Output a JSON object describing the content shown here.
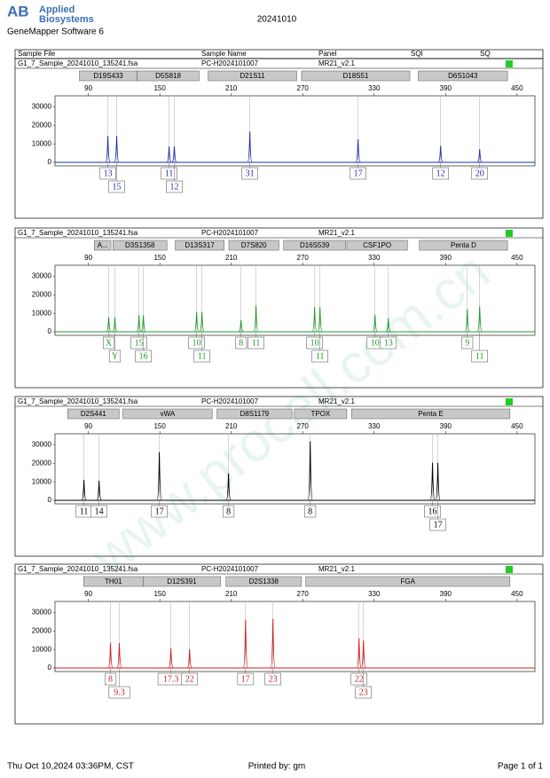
{
  "header": {
    "logo_mark": "AB",
    "logo_line1": "Applied",
    "logo_line2": "Biosystems",
    "software": "GeneMapper Software 6",
    "date": "20241010"
  },
  "columns": [
    "Sample File",
    "Sample Name",
    "Panel",
    "SQI",
    "SQ"
  ],
  "watermark": "www.procell.com.cn",
  "chart_data": [
    {
      "type": "electropherogram",
      "sample_file": "G1_7_Sample_20241010_135241.fsa",
      "sample_name": "PC-H2024101007",
      "panel": "MR21_v2.1",
      "color": "#1f2fa8",
      "xlim": [
        62,
        465
      ],
      "xticks": [
        90,
        150,
        210,
        270,
        330,
        390,
        450
      ],
      "ylim": [
        0,
        36000
      ],
      "yticks": [
        0,
        10000,
        20000,
        30000
      ],
      "markers": {
        "names": [
          "D19S433",
          "D5S818",
          "D21S11",
          "D18S51",
          "D6S1043"
        ],
        "start": [
          82.5,
          131,
          190.6,
          269,
          367
        ],
        "end": [
          131,
          183,
          265,
          360,
          442
        ]
      },
      "peaks": {
        "x": [
          106.4,
          113.8,
          157.8,
          162.2,
          225.6,
          316.5,
          385.8,
          418.6
        ],
        "values": [
          14300,
          14300,
          8600,
          8600,
          16700,
          12400,
          9000,
          7100
        ],
        "labels": [
          "13",
          "15",
          "11",
          "12",
          "31",
          "17",
          "12",
          "20"
        ]
      }
    },
    {
      "type": "electropherogram",
      "sample_file": "G1_7_Sample_20241010_135241.fsa",
      "sample_name": "PC-H2024101007",
      "panel": "MR21_v2.1",
      "color": "#1f9a2a",
      "xlim": [
        62,
        465
      ],
      "xticks": [
        90,
        150,
        210,
        270,
        330,
        390,
        450
      ],
      "ylim": [
        0,
        36000
      ],
      "yticks": [
        0,
        10000,
        20000,
        30000
      ],
      "markers": {
        "names": [
          "A...",
          "D3S1358",
          "D13S317",
          "D7S820",
          "D16S539",
          "CSF1PO",
          "Penta D"
        ],
        "start": [
          95,
          110.6,
          163,
          208,
          254,
          307,
          368
        ],
        "end": [
          109,
          156,
          204,
          250,
          306,
          358,
          442
        ]
      },
      "peaks": {
        "x": [
          107.1,
          112.3,
          132.5,
          136.2,
          180.9,
          185.4,
          218.2,
          230.8,
          280,
          284.5,
          330.7,
          341.9,
          408.2,
          418.6
        ],
        "values": [
          7900,
          7900,
          8900,
          8900,
          10800,
          10800,
          6400,
          14300,
          13300,
          13300,
          9300,
          7400,
          12300,
          13800
        ],
        "labels": [
          "X",
          "Y",
          "15",
          "16",
          "10",
          "11",
          "8",
          "11",
          "10",
          "11",
          "10",
          "13",
          "9",
          "11"
        ]
      }
    },
    {
      "type": "electropherogram",
      "sample_file": "G1_7_Sample_20241010_135241.fsa",
      "sample_name": "PC-H2024101007",
      "panel": "MR21_v2.1",
      "color": "#000000",
      "xlim": [
        62,
        465
      ],
      "xticks": [
        90,
        150,
        210,
        270,
        330,
        390,
        450
      ],
      "ylim": [
        0,
        36000
      ],
      "yticks": [
        0,
        10000,
        20000,
        30000
      ],
      "markers": {
        "names": [
          "D2S441",
          "vWA",
          "D8S1179",
          "TPOX",
          "Penta E"
        ],
        "start": [
          72.6,
          119,
          198,
          263,
          311
        ],
        "end": [
          115.9,
          194,
          261,
          307,
          444
        ]
      },
      "peaks": {
        "x": [
          86.3,
          99,
          149.6,
          207.7,
          276.3,
          379,
          383.5
        ],
        "values": [
          11100,
          10600,
          26100,
          14500,
          31900,
          20300,
          20300
        ],
        "labels": [
          "11",
          "14",
          "17",
          "8",
          "8",
          "16",
          "17"
        ]
      }
    },
    {
      "type": "electropherogram",
      "sample_file": "G1_7_Sample_20241010_135241.fsa",
      "sample_name": "PC-H2024101007",
      "panel": "MR21_v2.1",
      "color": "#cc1f1f",
      "xlim": [
        62,
        465
      ],
      "xticks": [
        90,
        150,
        210,
        270,
        330,
        390,
        450
      ],
      "ylim": [
        0,
        36000
      ],
      "yticks": [
        0,
        10000,
        20000,
        30000
      ],
      "markers": {
        "names": [
          "TH01",
          "D12S391",
          "D2S1338",
          "FGA"
        ],
        "start": [
          86,
          136,
          205.6,
          272.6
        ],
        "end": [
          136,
          201,
          269,
          444
        ]
      },
      "peaks": {
        "x": [
          108.6,
          116,
          159.3,
          175,
          222,
          245,
          317.3,
          321
        ],
        "values": [
          13500,
          13500,
          10600,
          10200,
          26100,
          26600,
          16000,
          15000
        ],
        "labels": [
          "8",
          "9.3",
          "17.3",
          "22",
          "17",
          "23",
          "22",
          "23"
        ]
      }
    }
  ],
  "footer": {
    "printed_at": "Thu Oct 10,2024 03:36PM, CST",
    "printed_by": "Printed by: gm",
    "page": "Page 1 of 1"
  }
}
